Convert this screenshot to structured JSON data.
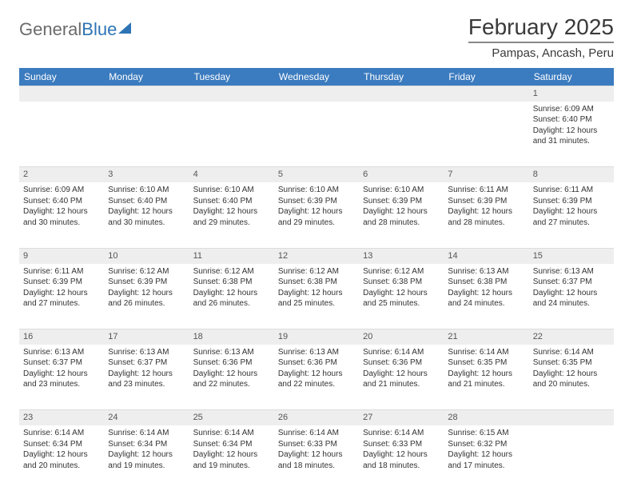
{
  "logo": {
    "word1": "General",
    "word2": "Blue"
  },
  "title": "February 2025",
  "location": "Pampas, Ancash, Peru",
  "colors": {
    "header_bg": "#3b7bbf",
    "header_text": "#ffffff",
    "daynum_bg": "#eeeeee",
    "body_bg": "#ffffff",
    "text": "#333333",
    "logo_gray": "#6b6b6b",
    "logo_blue": "#2e74b5"
  },
  "day_headers": [
    "Sunday",
    "Monday",
    "Tuesday",
    "Wednesday",
    "Thursday",
    "Friday",
    "Saturday"
  ],
  "weeks": [
    [
      {
        "num": "",
        "lines": []
      },
      {
        "num": "",
        "lines": []
      },
      {
        "num": "",
        "lines": []
      },
      {
        "num": "",
        "lines": []
      },
      {
        "num": "",
        "lines": []
      },
      {
        "num": "",
        "lines": []
      },
      {
        "num": "1",
        "lines": [
          "Sunrise: 6:09 AM",
          "Sunset: 6:40 PM",
          "Daylight: 12 hours and 31 minutes."
        ]
      }
    ],
    [
      {
        "num": "2",
        "lines": [
          "Sunrise: 6:09 AM",
          "Sunset: 6:40 PM",
          "Daylight: 12 hours and 30 minutes."
        ]
      },
      {
        "num": "3",
        "lines": [
          "Sunrise: 6:10 AM",
          "Sunset: 6:40 PM",
          "Daylight: 12 hours and 30 minutes."
        ]
      },
      {
        "num": "4",
        "lines": [
          "Sunrise: 6:10 AM",
          "Sunset: 6:40 PM",
          "Daylight: 12 hours and 29 minutes."
        ]
      },
      {
        "num": "5",
        "lines": [
          "Sunrise: 6:10 AM",
          "Sunset: 6:39 PM",
          "Daylight: 12 hours and 29 minutes."
        ]
      },
      {
        "num": "6",
        "lines": [
          "Sunrise: 6:10 AM",
          "Sunset: 6:39 PM",
          "Daylight: 12 hours and 28 minutes."
        ]
      },
      {
        "num": "7",
        "lines": [
          "Sunrise: 6:11 AM",
          "Sunset: 6:39 PM",
          "Daylight: 12 hours and 28 minutes."
        ]
      },
      {
        "num": "8",
        "lines": [
          "Sunrise: 6:11 AM",
          "Sunset: 6:39 PM",
          "Daylight: 12 hours and 27 minutes."
        ]
      }
    ],
    [
      {
        "num": "9",
        "lines": [
          "Sunrise: 6:11 AM",
          "Sunset: 6:39 PM",
          "Daylight: 12 hours and 27 minutes."
        ]
      },
      {
        "num": "10",
        "lines": [
          "Sunrise: 6:12 AM",
          "Sunset: 6:39 PM",
          "Daylight: 12 hours and 26 minutes."
        ]
      },
      {
        "num": "11",
        "lines": [
          "Sunrise: 6:12 AM",
          "Sunset: 6:38 PM",
          "Daylight: 12 hours and 26 minutes."
        ]
      },
      {
        "num": "12",
        "lines": [
          "Sunrise: 6:12 AM",
          "Sunset: 6:38 PM",
          "Daylight: 12 hours and 25 minutes."
        ]
      },
      {
        "num": "13",
        "lines": [
          "Sunrise: 6:12 AM",
          "Sunset: 6:38 PM",
          "Daylight: 12 hours and 25 minutes."
        ]
      },
      {
        "num": "14",
        "lines": [
          "Sunrise: 6:13 AM",
          "Sunset: 6:38 PM",
          "Daylight: 12 hours and 24 minutes."
        ]
      },
      {
        "num": "15",
        "lines": [
          "Sunrise: 6:13 AM",
          "Sunset: 6:37 PM",
          "Daylight: 12 hours and 24 minutes."
        ]
      }
    ],
    [
      {
        "num": "16",
        "lines": [
          "Sunrise: 6:13 AM",
          "Sunset: 6:37 PM",
          "Daylight: 12 hours and 23 minutes."
        ]
      },
      {
        "num": "17",
        "lines": [
          "Sunrise: 6:13 AM",
          "Sunset: 6:37 PM",
          "Daylight: 12 hours and 23 minutes."
        ]
      },
      {
        "num": "18",
        "lines": [
          "Sunrise: 6:13 AM",
          "Sunset: 6:36 PM",
          "Daylight: 12 hours and 22 minutes."
        ]
      },
      {
        "num": "19",
        "lines": [
          "Sunrise: 6:13 AM",
          "Sunset: 6:36 PM",
          "Daylight: 12 hours and 22 minutes."
        ]
      },
      {
        "num": "20",
        "lines": [
          "Sunrise: 6:14 AM",
          "Sunset: 6:36 PM",
          "Daylight: 12 hours and 21 minutes."
        ]
      },
      {
        "num": "21",
        "lines": [
          "Sunrise: 6:14 AM",
          "Sunset: 6:35 PM",
          "Daylight: 12 hours and 21 minutes."
        ]
      },
      {
        "num": "22",
        "lines": [
          "Sunrise: 6:14 AM",
          "Sunset: 6:35 PM",
          "Daylight: 12 hours and 20 minutes."
        ]
      }
    ],
    [
      {
        "num": "23",
        "lines": [
          "Sunrise: 6:14 AM",
          "Sunset: 6:34 PM",
          "Daylight: 12 hours and 20 minutes."
        ]
      },
      {
        "num": "24",
        "lines": [
          "Sunrise: 6:14 AM",
          "Sunset: 6:34 PM",
          "Daylight: 12 hours and 19 minutes."
        ]
      },
      {
        "num": "25",
        "lines": [
          "Sunrise: 6:14 AM",
          "Sunset: 6:34 PM",
          "Daylight: 12 hours and 19 minutes."
        ]
      },
      {
        "num": "26",
        "lines": [
          "Sunrise: 6:14 AM",
          "Sunset: 6:33 PM",
          "Daylight: 12 hours and 18 minutes."
        ]
      },
      {
        "num": "27",
        "lines": [
          "Sunrise: 6:14 AM",
          "Sunset: 6:33 PM",
          "Daylight: 12 hours and 18 minutes."
        ]
      },
      {
        "num": "28",
        "lines": [
          "Sunrise: 6:15 AM",
          "Sunset: 6:32 PM",
          "Daylight: 12 hours and 17 minutes."
        ]
      },
      {
        "num": "",
        "lines": []
      }
    ]
  ]
}
